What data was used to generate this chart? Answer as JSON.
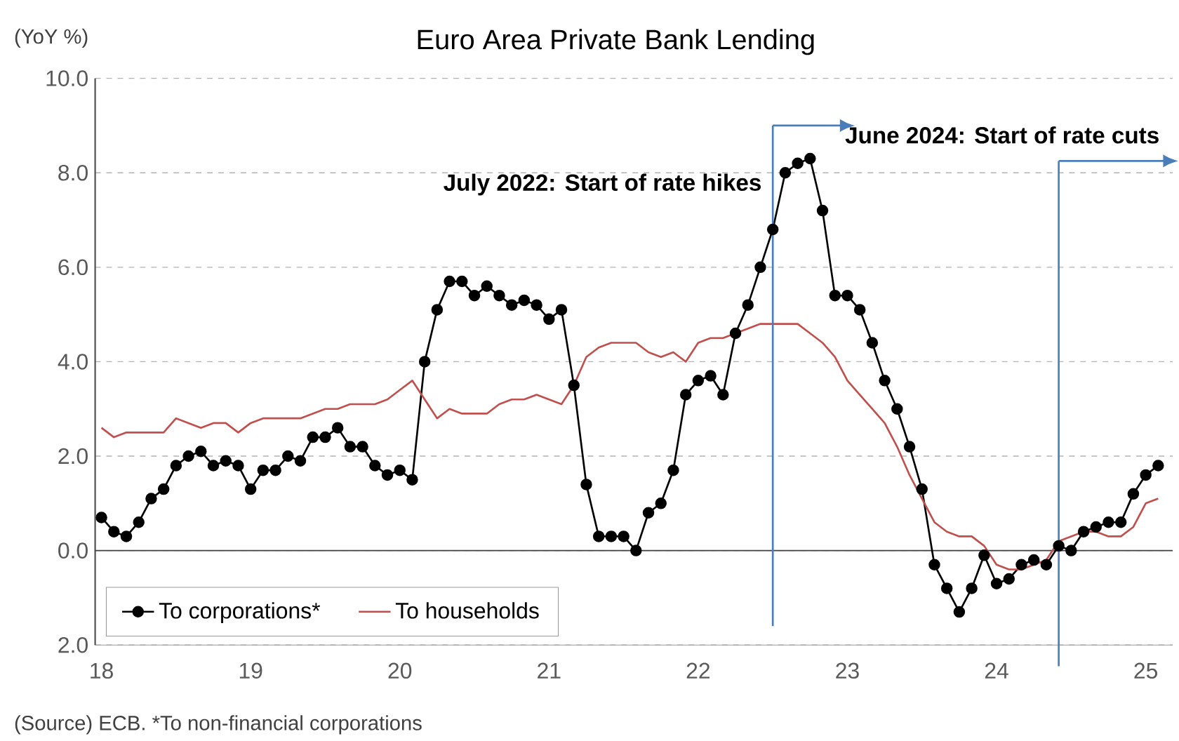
{
  "chart_data": {
    "type": "line",
    "title": "Euro Area Private Bank Lending",
    "ylabel": "(YoY %)",
    "annotations": [
      "(Source) ECB. *To non-financial corporations"
    ],
    "x": [
      "2018-01",
      "2018-02",
      "2018-03",
      "2018-04",
      "2018-05",
      "2018-06",
      "2018-07",
      "2018-08",
      "2018-09",
      "2018-10",
      "2018-11",
      "2018-12",
      "2019-01",
      "2019-02",
      "2019-03",
      "2019-04",
      "2019-05",
      "2019-06",
      "2019-07",
      "2019-08",
      "2019-09",
      "2019-10",
      "2019-11",
      "2019-12",
      "2020-01",
      "2020-02",
      "2020-03",
      "2020-04",
      "2020-05",
      "2020-06",
      "2020-07",
      "2020-08",
      "2020-09",
      "2020-10",
      "2020-11",
      "2020-12",
      "2021-01",
      "2021-02",
      "2021-03",
      "2021-04",
      "2021-05",
      "2021-06",
      "2021-07",
      "2021-08",
      "2021-09",
      "2021-10",
      "2021-11",
      "2021-12",
      "2022-01",
      "2022-02",
      "2022-03",
      "2022-04",
      "2022-05",
      "2022-06",
      "2022-07",
      "2022-08",
      "2022-09",
      "2022-10",
      "2022-11",
      "2022-12",
      "2023-01",
      "2023-02",
      "2023-03",
      "2023-04",
      "2023-05",
      "2023-06",
      "2023-07",
      "2023-08",
      "2023-09",
      "2023-10",
      "2023-11",
      "2023-12",
      "2024-01",
      "2024-02",
      "2024-03",
      "2024-04",
      "2024-05",
      "2024-06",
      "2024-07",
      "2024-08",
      "2024-09",
      "2024-10",
      "2024-11",
      "2024-12",
      "2025-01",
      "2025-02"
    ],
    "series": [
      {
        "name": "To corporations*",
        "color": "#000000",
        "marker": "circle",
        "values": [
          0.7,
          0.4,
          0.3,
          0.6,
          1.1,
          1.3,
          1.8,
          2.0,
          2.1,
          1.8,
          1.9,
          1.8,
          1.3,
          1.7,
          1.7,
          2.0,
          1.9,
          2.4,
          2.4,
          2.6,
          2.2,
          2.2,
          1.8,
          1.6,
          1.7,
          1.5,
          4.0,
          5.1,
          5.7,
          5.7,
          5.4,
          5.6,
          5.4,
          5.2,
          5.3,
          5.2,
          4.9,
          5.1,
          3.5,
          1.4,
          0.3,
          0.3,
          0.3,
          0.0,
          0.8,
          1.0,
          1.7,
          3.3,
          3.6,
          3.7,
          3.3,
          4.6,
          5.2,
          6.0,
          6.8,
          8.0,
          8.2,
          8.3,
          7.2,
          5.4,
          5.4,
          5.1,
          4.4,
          3.6,
          3.0,
          2.2,
          1.3,
          -0.3,
          -0.8,
          -1.3,
          -0.8,
          -0.1,
          -0.7,
          -0.6,
          -0.3,
          -0.2,
          -0.3,
          0.1,
          0.0,
          0.4,
          0.5,
          0.6,
          0.6,
          1.2,
          1.6,
          1.8
        ]
      },
      {
        "name": "To households",
        "color": "#c0504d",
        "marker": "none",
        "values": [
          2.6,
          2.4,
          2.5,
          2.5,
          2.5,
          2.5,
          2.8,
          2.7,
          2.6,
          2.7,
          2.7,
          2.5,
          2.7,
          2.8,
          2.8,
          2.8,
          2.8,
          2.9,
          3.0,
          3.0,
          3.1,
          3.1,
          3.1,
          3.2,
          3.4,
          3.6,
          3.2,
          2.8,
          3.0,
          2.9,
          2.9,
          2.9,
          3.1,
          3.2,
          3.2,
          3.3,
          3.2,
          3.1,
          3.5,
          4.1,
          4.3,
          4.4,
          4.4,
          4.4,
          4.2,
          4.1,
          4.2,
          4.0,
          4.4,
          4.5,
          4.5,
          4.6,
          4.7,
          4.8,
          4.8,
          4.8,
          4.8,
          4.6,
          4.4,
          4.1,
          3.6,
          3.3,
          3.0,
          2.7,
          2.2,
          1.6,
          1.1,
          0.6,
          0.4,
          0.3,
          0.3,
          0.1,
          -0.3,
          -0.4,
          -0.4,
          -0.3,
          -0.2,
          0.2,
          0.3,
          0.4,
          0.4,
          0.3,
          0.3,
          0.5,
          1.0,
          1.1
        ]
      }
    ],
    "xlim": [
      "2017-12-16",
      "2025-03-06"
    ],
    "xticks": [
      {
        "value": "2018-01",
        "label": "18"
      },
      {
        "value": "2019-01",
        "label": "19"
      },
      {
        "value": "2020-01",
        "label": "20"
      },
      {
        "value": "2021-01",
        "label": "21"
      },
      {
        "value": "2022-01",
        "label": "22"
      },
      {
        "value": "2023-01",
        "label": "23"
      },
      {
        "value": "2024-01",
        "label": "24"
      },
      {
        "value": "2025-01",
        "label": "25"
      }
    ],
    "ylim": [
      -2,
      10
    ],
    "yticks": [
      {
        "value": -2,
        "label": "2.0"
      },
      {
        "value": 0,
        "label": "0.0"
      },
      {
        "value": 2,
        "label": "2.0"
      },
      {
        "value": 4,
        "label": "4.0"
      },
      {
        "value": 6,
        "label": "6.0"
      },
      {
        "value": 8,
        "label": "8.0"
      },
      {
        "value": 10,
        "label": "10.0"
      }
    ],
    "ref_lines": [
      {
        "axis": "x",
        "value": "2022-07",
        "label": "July 2022: Start of rate hikes",
        "color": "#4a7ebb"
      },
      {
        "axis": "x",
        "value": "2024-06",
        "label": "June 2024: Start of rate cuts",
        "color": "#4a7ebb"
      }
    ],
    "grid": "y",
    "legend": "bottom left",
    "line_style": "solid"
  }
}
